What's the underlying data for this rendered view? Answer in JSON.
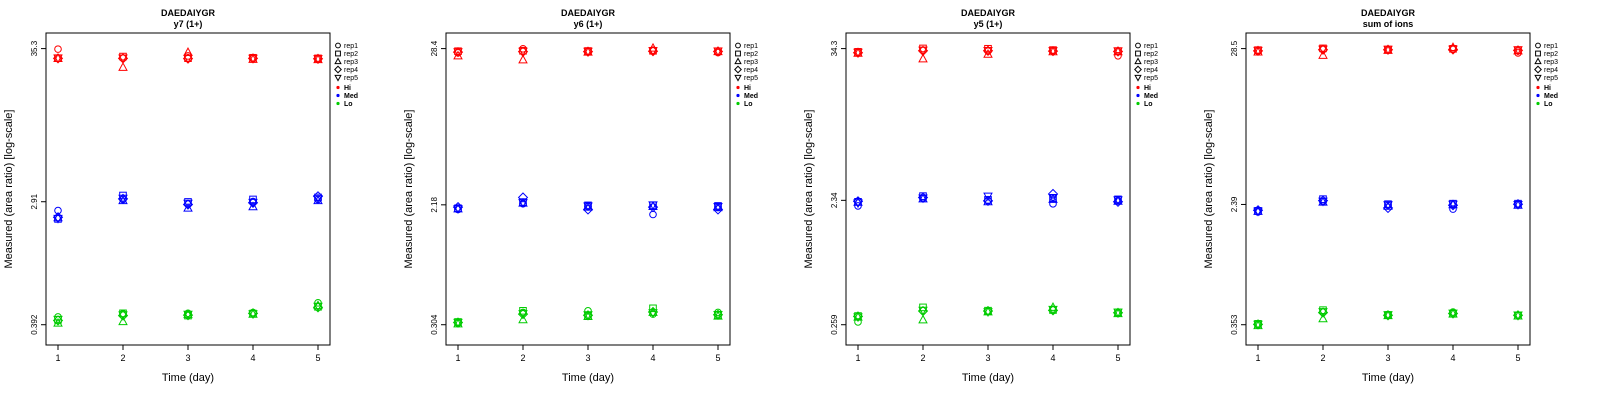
{
  "figure": {
    "xlabel": "Time (day)",
    "ylabel": "Measured (area ratio) [log-scale]"
  },
  "legend": {
    "reps": [
      {
        "label": "rep1",
        "symbol": "circle"
      },
      {
        "label": "rep2",
        "symbol": "square"
      },
      {
        "label": "rep3",
        "symbol": "triangle-up"
      },
      {
        "label": "rep4",
        "symbol": "diamond"
      },
      {
        "label": "rep5",
        "symbol": "triangle-down"
      }
    ],
    "groups": [
      {
        "label": "Hi",
        "color": "#ff0000"
      },
      {
        "label": "Med",
        "color": "#0000ff"
      },
      {
        "label": "Lo",
        "color": "#00cc00"
      }
    ]
  },
  "chart_data": [
    {
      "type": "scatter",
      "title": "DAEDAIYGR",
      "subtitle": "y7 (1+)",
      "xlabel": "Time (day)",
      "ylabel": "Measured (area ratio) [log-scale]",
      "yscale": "log",
      "grid": false,
      "legend_position": "right",
      "x": [
        1,
        2,
        3,
        4,
        5
      ],
      "yticks": [
        35.3,
        2.91,
        0.392
      ],
      "ylim": [
        0.28,
        45
      ],
      "series": [
        {
          "name": "Hi",
          "color": "#ff0000",
          "values": [
            [
              35.0,
              30.2,
              30.0,
              30.1,
              30.3
            ],
            [
              30.2,
              31.0,
              26.0,
              30.1,
              30.3
            ],
            [
              31.3,
              30.2,
              33.2,
              30.0,
              30.1
            ],
            [
              30.0,
              30.4,
              29.6,
              30.1,
              30.2
            ],
            [
              29.8,
              30.1,
              29.5,
              29.9,
              30.0
            ]
          ]
        },
        {
          "name": "Med",
          "color": "#0000ff",
          "values": [
            [
              2.52,
              2.2,
              2.24,
              2.26,
              2.22
            ],
            [
              3.02,
              3.22,
              2.96,
              3.05,
              3.08
            ],
            [
              2.8,
              2.9,
              2.62,
              2.78,
              2.84
            ],
            [
              2.92,
              3.02,
              2.68,
              2.86,
              2.88
            ],
            [
              3.02,
              3.12,
              2.96,
              3.18,
              3.06
            ]
          ]
        },
        {
          "name": "Lo",
          "color": "#00cc00",
          "values": [
            [
              0.445,
              0.425,
              0.402,
              0.42,
              0.428
            ],
            [
              0.468,
              0.472,
              0.412,
              0.455,
              0.46
            ],
            [
              0.472,
              0.455,
              0.462,
              0.458,
              0.465
            ],
            [
              0.478,
              0.47,
              0.465,
              0.472,
              0.468
            ],
            [
              0.56,
              0.525,
              0.535,
              0.52,
              0.53
            ]
          ]
        }
      ]
    },
    {
      "type": "scatter",
      "title": "DAEDAIYGR",
      "subtitle": "y6 (1+)",
      "xlabel": "Time (day)",
      "ylabel": "Measured (area ratio) [log-scale]",
      "yscale": "log",
      "grid": false,
      "legend_position": "right",
      "x": [
        1,
        2,
        3,
        4,
        5
      ],
      "yticks": [
        28.4,
        2.18,
        0.304
      ],
      "ylim": [
        0.22,
        37
      ],
      "series": [
        {
          "name": "Hi",
          "color": "#ff0000",
          "values": [
            [
              26.5,
              27.2,
              25.2,
              26.8,
              27.0
            ],
            [
              28.3,
              27.4,
              23.6,
              27.0,
              27.2
            ],
            [
              27.1,
              27.3,
              26.8,
              27.0,
              27.2
            ],
            [
              27.6,
              27.4,
              28.6,
              27.2,
              27.5
            ],
            [
              26.6,
              27.2,
              27.0,
              27.1,
              27.3
            ]
          ]
        },
        {
          "name": "Med",
          "color": "#0000ff",
          "values": [
            [
              2.02,
              2.06,
              2.04,
              2.1,
              2.05
            ],
            [
              2.22,
              2.28,
              2.24,
              2.46,
              2.26
            ],
            [
              2.12,
              2.16,
              2.1,
              2.02,
              2.14
            ],
            [
              1.86,
              2.16,
              2.12,
              2.1,
              2.18
            ],
            [
              2.1,
              2.14,
              2.08,
              2.02,
              2.12
            ]
          ]
        },
        {
          "name": "Lo",
          "color": "#00cc00",
          "values": [
            [
              0.312,
              0.318,
              0.308,
              0.315,
              0.316
            ],
            [
              0.372,
              0.382,
              0.33,
              0.362,
              0.365
            ],
            [
              0.382,
              0.352,
              0.348,
              0.355,
              0.358
            ],
            [
              0.362,
              0.398,
              0.372,
              0.375,
              0.37
            ],
            [
              0.372,
              0.355,
              0.35,
              0.358,
              0.36
            ]
          ]
        }
      ]
    },
    {
      "type": "scatter",
      "title": "DAEDAIYGR",
      "subtitle": "y5 (1+)",
      "xlabel": "Time (day)",
      "ylabel": "Measured (area ratio) [log-scale]",
      "yscale": "log",
      "grid": false,
      "legend_position": "right",
      "x": [
        1,
        2,
        3,
        4,
        5
      ],
      "yticks": [
        34.3,
        2.34,
        0.259
      ],
      "ylim": [
        0.18,
        45
      ],
      "series": [
        {
          "name": "Hi",
          "color": "#ff0000",
          "values": [
            [
              32.0,
              32.4,
              31.6,
              31.9,
              32.2
            ],
            [
              33.2,
              34.4,
              28.6,
              33.0,
              33.4
            ],
            [
              32.8,
              34.2,
              31.0,
              33.0,
              33.2
            ],
            [
              33.0,
              33.4,
              32.4,
              32.8,
              33.1
            ],
            [
              30.2,
              32.8,
              32.4,
              32.6,
              33.0
            ]
          ]
        },
        {
          "name": "Med",
          "color": "#0000ff",
          "values": [
            [
              2.12,
              2.28,
              2.26,
              2.3,
              2.24
            ],
            [
              2.42,
              2.52,
              2.4,
              2.46,
              2.44
            ],
            [
              2.34,
              2.36,
              2.28,
              2.32,
              2.52
            ],
            [
              2.2,
              2.42,
              2.38,
              2.62,
              2.46
            ],
            [
              2.32,
              2.38,
              2.3,
              2.28,
              2.36
            ]
          ]
        },
        {
          "name": "Lo",
          "color": "#00cc00",
          "values": [
            [
              0.272,
              0.302,
              0.296,
              0.3,
              0.298
            ],
            [
              0.332,
              0.352,
              0.282,
              0.33,
              0.335
            ],
            [
              0.328,
              0.332,
              0.325,
              0.33,
              0.326
            ],
            [
              0.338,
              0.336,
              0.352,
              0.334,
              0.34
            ],
            [
              0.318,
              0.322,
              0.315,
              0.32,
              0.324
            ]
          ]
        }
      ]
    },
    {
      "type": "scatter",
      "title": "DAEDAIYGR",
      "subtitle": "sum of ions",
      "xlabel": "Time (day)",
      "ylabel": "Measured (area ratio) [log-scale]",
      "yscale": "log",
      "grid": false,
      "legend_position": "right",
      "x": [
        1,
        2,
        3,
        4,
        5
      ],
      "yticks": [
        28.5,
        2.39,
        0.353
      ],
      "ylim": [
        0.26,
        37
      ],
      "series": [
        {
          "name": "Hi",
          "color": "#ff0000",
          "values": [
            [
              27.4,
              27.8,
              27.0,
              27.5,
              27.7
            ],
            [
              28.2,
              28.6,
              25.6,
              28.0,
              28.3
            ],
            [
              27.9,
              28.1,
              27.7,
              28.0,
              28.2
            ],
            [
              28.2,
              28.4,
              29.0,
              28.1,
              28.3
            ],
            [
              26.6,
              27.8,
              27.5,
              27.7,
              28.0
            ]
          ]
        },
        {
          "name": "Med",
          "color": "#0000ff",
          "values": [
            [
              2.12,
              2.16,
              2.14,
              2.18,
              2.15
            ],
            [
              2.5,
              2.6,
              2.48,
              2.54,
              2.52
            ],
            [
              2.36,
              2.4,
              2.32,
              2.26,
              2.38
            ],
            [
              2.22,
              2.42,
              2.38,
              2.36,
              2.4
            ],
            [
              2.38,
              2.42,
              2.36,
              2.4,
              2.39
            ]
          ]
        },
        {
          "name": "Lo",
          "color": "#00cc00",
          "values": [
            [
              0.352,
              0.358,
              0.348,
              0.355,
              0.356
            ],
            [
              0.432,
              0.445,
              0.388,
              0.428,
              0.435
            ],
            [
              0.415,
              0.412,
              0.408,
              0.41,
              0.414
            ],
            [
              0.432,
              0.42,
              0.418,
              0.422,
              0.425
            ],
            [
              0.412,
              0.408,
              0.405,
              0.41,
              0.412
            ]
          ]
        }
      ]
    }
  ]
}
